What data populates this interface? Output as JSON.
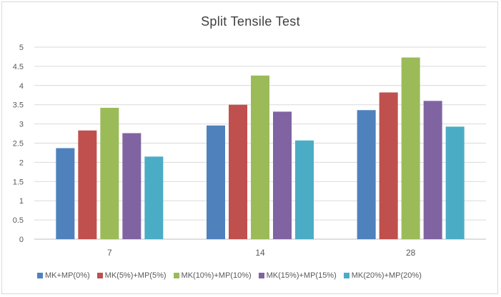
{
  "chart_data": {
    "type": "bar",
    "title": "Split Tensile Test",
    "categories": [
      "7",
      "14",
      "28"
    ],
    "series": [
      {
        "name": "MK+MP(0%)",
        "color": "#4f81bd",
        "values": [
          2.37,
          2.96,
          3.36
        ]
      },
      {
        "name": "MK(5%)+MP(5%)",
        "color": "#c0504d",
        "values": [
          2.83,
          3.5,
          3.82
        ]
      },
      {
        "name": "MK(10%)+MP(10%)",
        "color": "#9bbb59",
        "values": [
          3.42,
          4.26,
          4.73
        ]
      },
      {
        "name": "MK(15%)+MP(15%)",
        "color": "#8064a2",
        "values": [
          2.76,
          3.32,
          3.6
        ]
      },
      {
        "name": "MK(20%)+MP(20%)",
        "color": "#4bacc6",
        "values": [
          2.15,
          2.57,
          2.93
        ]
      }
    ],
    "yticks": [
      "0",
      "0.5",
      "1",
      "1.5",
      "2",
      "2.5",
      "3",
      "3.5",
      "4",
      "4.5",
      "5"
    ],
    "ylim": [
      0,
      5
    ],
    "grid": true,
    "legend_position": "bottom"
  }
}
